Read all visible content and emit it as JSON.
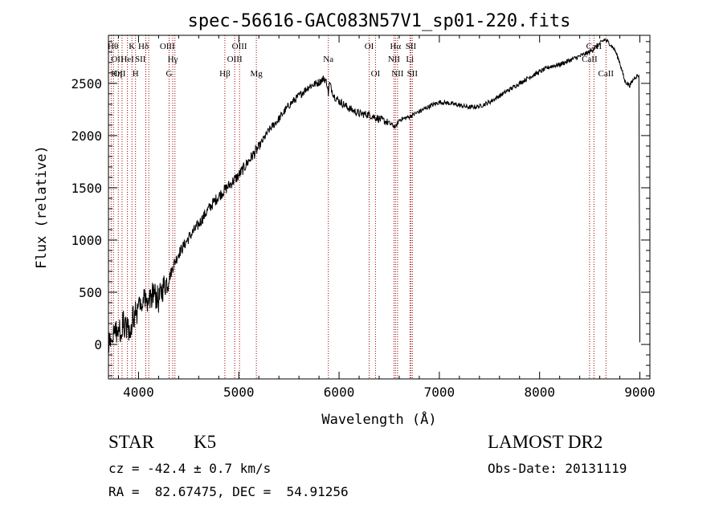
{
  "chart_data": {
    "type": "line",
    "title": "spec-56616-GAC083N57V1_sp01-220.fits",
    "xlabel": "Wavelength (Å)",
    "ylabel": "Flux (relative)",
    "xlim": [
      3700,
      9100
    ],
    "ylim": [
      -330,
      2960
    ],
    "x_ticks": [
      4000,
      5000,
      6000,
      7000,
      8000,
      9000
    ],
    "x_tick_labels": [
      "4000",
      "5000",
      "6000",
      "7000",
      "8000",
      "9000"
    ],
    "y_ticks": [
      0,
      500,
      1000,
      1500,
      2000,
      2500
    ],
    "y_tick_labels": [
      "0",
      "500",
      "1000",
      "1500",
      "2000",
      "2500"
    ],
    "grid": false,
    "line_color": "#000000",
    "marker_color": "#990000",
    "series": [
      {
        "x": [
          3700,
          3750,
          3800,
          3850,
          3900,
          3950,
          4000,
          4050,
          4100,
          4150,
          4200,
          4250,
          4300,
          4350,
          4400,
          4500,
          4600,
          4700,
          4800,
          4900,
          5000,
          5100,
          5200,
          5300,
          5400,
          5500,
          5600,
          5700,
          5800,
          5850,
          5880,
          5893,
          5905,
          5950,
          6000,
          6100,
          6200,
          6300,
          6400,
          6500,
          6563,
          6600,
          6700,
          6800,
          6900,
          7000,
          7100,
          7200,
          7300,
          7400,
          7500,
          7600,
          7700,
          7800,
          7900,
          8000,
          8100,
          8200,
          8300,
          8400,
          8500,
          8550,
          8600,
          8650,
          8700,
          8750,
          8800,
          8850,
          8900,
          8950,
          8990,
          9000
        ],
        "y": [
          -20,
          150,
          100,
          200,
          150,
          250,
          350,
          450,
          420,
          500,
          420,
          560,
          620,
          760,
          870,
          1020,
          1150,
          1300,
          1420,
          1520,
          1620,
          1760,
          1890,
          2050,
          2160,
          2290,
          2380,
          2470,
          2510,
          2550,
          2500,
          2400,
          2500,
          2380,
          2330,
          2260,
          2210,
          2200,
          2160,
          2120,
          2080,
          2150,
          2180,
          2230,
          2280,
          2320,
          2310,
          2290,
          2270,
          2280,
          2320,
          2380,
          2440,
          2500,
          2560,
          2610,
          2660,
          2680,
          2720,
          2760,
          2800,
          2840,
          2880,
          2920,
          2880,
          2820,
          2700,
          2520,
          2480,
          2560,
          2580,
          20
        ]
      }
    ],
    "line_markers": [
      {
        "x": 3727,
        "label": "OII",
        "row": 2,
        "anchor": "start"
      },
      {
        "x": 3750,
        "label": "OII",
        "row": 3,
        "anchor": "start"
      },
      {
        "x": 3798,
        "label": "Hθ",
        "row": 1,
        "anchor": "end"
      },
      {
        "x": 3836,
        "label": "Hη",
        "row": 3,
        "anchor": "end"
      },
      {
        "x": 3889,
        "label": "HeI",
        "row": 2,
        "anchor": "middle"
      },
      {
        "x": 3934,
        "label": "K",
        "row": 1,
        "anchor": "middle"
      },
      {
        "x": 3970,
        "label": "H",
        "row": 3,
        "anchor": "middle"
      },
      {
        "x": 4072,
        "label": "SII",
        "row": 2,
        "anchor": "end"
      },
      {
        "x": 4102,
        "label": "Hδ",
        "row": 1,
        "anchor": "end"
      },
      {
        "x": 4305,
        "label": "G",
        "row": 3,
        "anchor": "middle"
      },
      {
        "x": 4341,
        "label": "Hγ",
        "row": 2,
        "anchor": "middle"
      },
      {
        "x": 4363,
        "label": "OIII",
        "row": 1,
        "anchor": "end"
      },
      {
        "x": 4861,
        "label": "Hβ",
        "row": 3,
        "anchor": "middle"
      },
      {
        "x": 4959,
        "label": "OIII",
        "row": 2,
        "anchor": "middle"
      },
      {
        "x": 5007,
        "label": "OIII",
        "row": 1,
        "anchor": "middle"
      },
      {
        "x": 5175,
        "label": "Mg",
        "row": 3,
        "anchor": "middle"
      },
      {
        "x": 5893,
        "label": "Na",
        "row": 2,
        "anchor": "middle"
      },
      {
        "x": 6300,
        "label": "OI",
        "row": 1,
        "anchor": "middle"
      },
      {
        "x": 6363,
        "label": "OI",
        "row": 3,
        "anchor": "middle"
      },
      {
        "x": 6548,
        "label": "NII",
        "row": 2,
        "anchor": "middle"
      },
      {
        "x": 6563,
        "label": "Hα",
        "row": 1,
        "anchor": "middle"
      },
      {
        "x": 6583,
        "label": "NII",
        "row": 3,
        "anchor": "middle"
      },
      {
        "x": 6707,
        "label": "Li",
        "row": 2,
        "anchor": "middle"
      },
      {
        "x": 6716,
        "label": "SII",
        "row": 1,
        "anchor": "middle"
      },
      {
        "x": 6731,
        "label": "SII",
        "row": 3,
        "anchor": "middle"
      },
      {
        "x": 8498,
        "label": "CaII",
        "row": 2,
        "anchor": "middle"
      },
      {
        "x": 8542,
        "label": "CaII",
        "row": 1,
        "anchor": "middle"
      },
      {
        "x": 8662,
        "label": "CaII",
        "row": 3,
        "anchor": "middle"
      }
    ]
  },
  "info": {
    "class": "STAR",
    "subclass": "K5",
    "survey": "LAMOST DR2",
    "cz": "cz = -42.4 ± 0.7 km/s",
    "obs_date": "Obs-Date: 20131119",
    "coords": "RA =  82.67475, DEC =  54.91256"
  }
}
